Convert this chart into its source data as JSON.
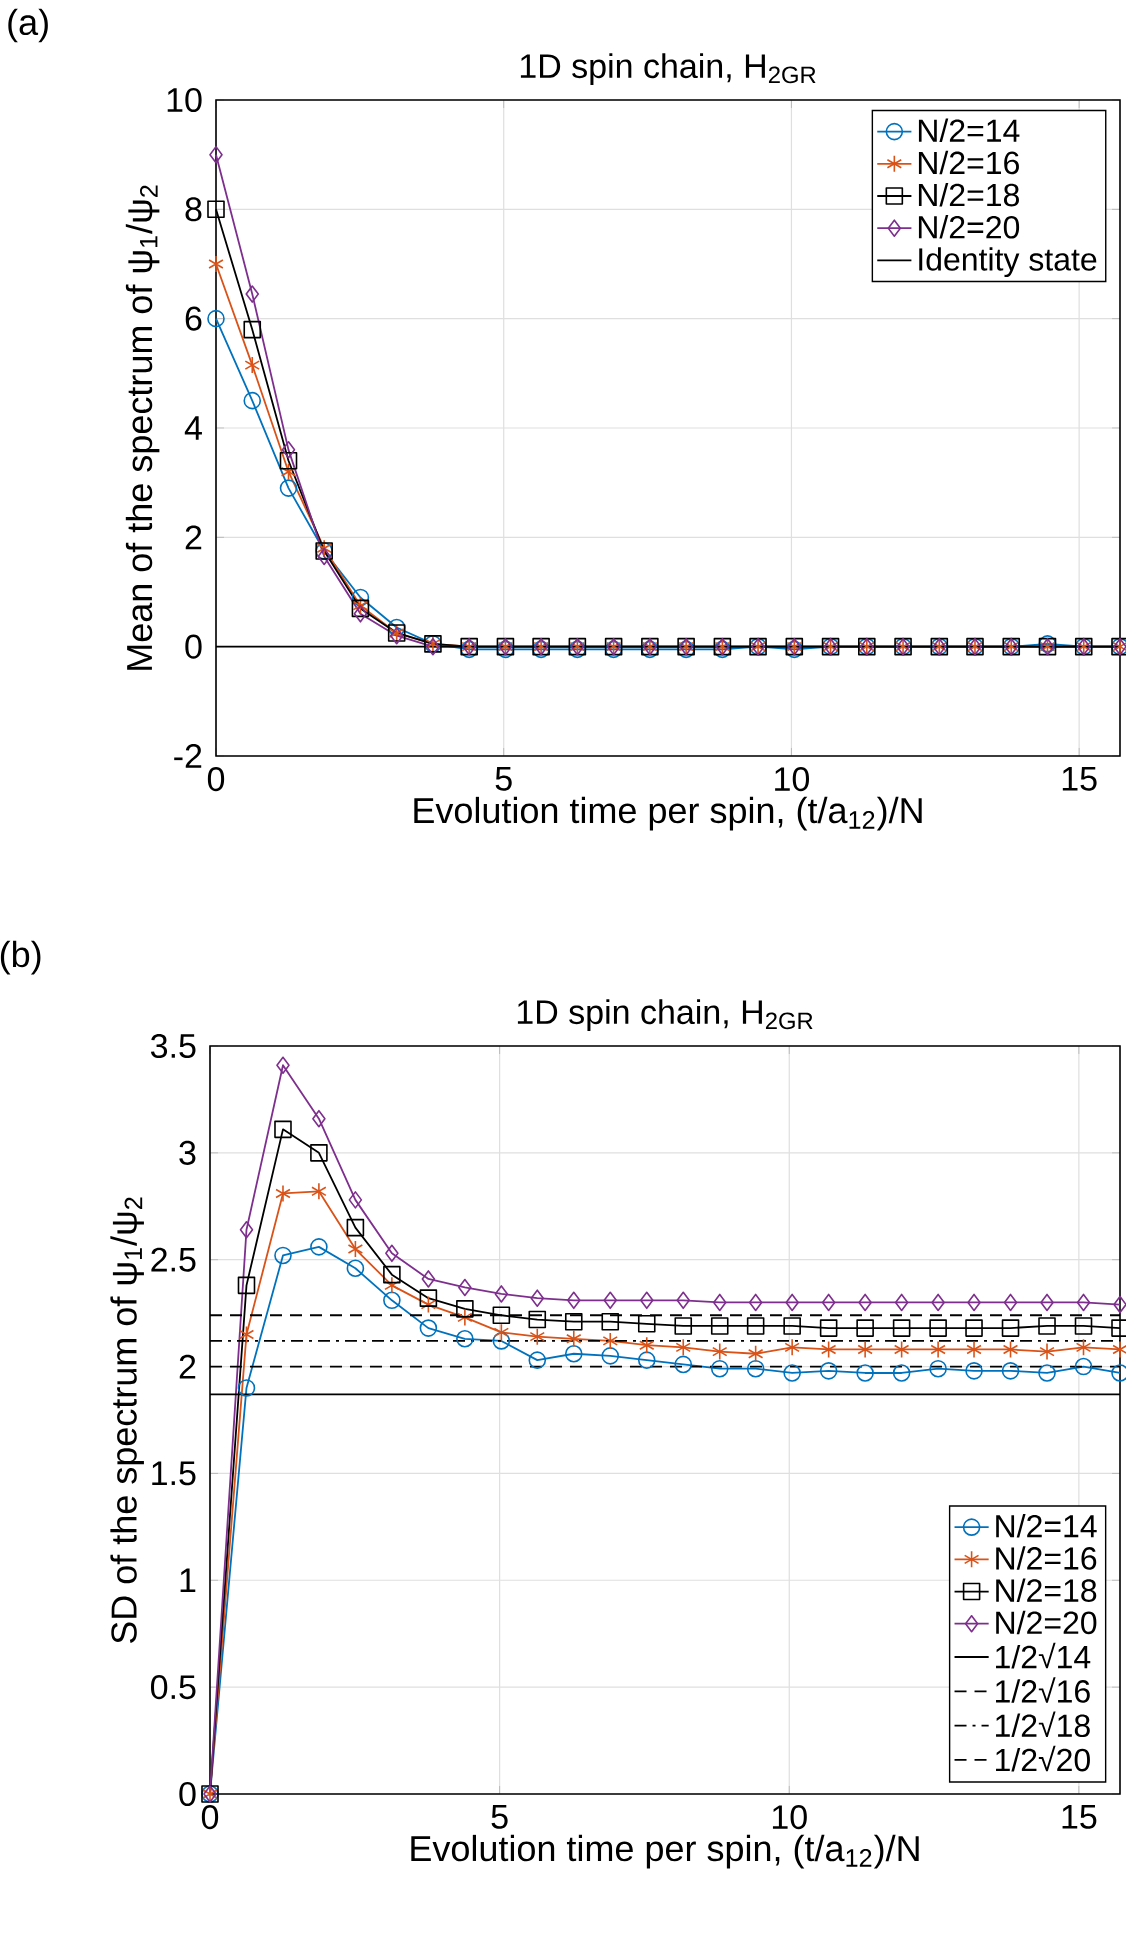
{
  "chart_data": [
    {
      "type": "line",
      "title": "1D spin chain, H$_{2GR}$",
      "xlabel": "Evolution time per spin, (t/a$_{12}$)/N",
      "ylabel": "Mean of the spectrum of ψ$_{1}$/ψ$_{2}$",
      "annotations": [
        "(a)"
      ],
      "x": [
        0,
        0.63,
        1.26,
        1.88,
        2.51,
        3.14,
        3.77,
        4.4,
        5.03,
        5.65,
        6.28,
        6.91,
        7.54,
        8.17,
        8.8,
        9.42,
        10.05,
        10.68,
        11.31,
        11.94,
        12.57,
        13.19,
        13.82,
        14.45,
        15.08,
        15.71
      ],
      "xlim": [
        0,
        15.71
      ],
      "xticks": [
        0,
        5,
        10,
        15
      ],
      "ylim": [
        -2,
        10
      ],
      "yticks": [
        -2,
        0,
        2,
        4,
        6,
        8,
        10
      ],
      "grid": true,
      "legend": "top right",
      "series": [
        {
          "name": "N/2=14",
          "color": "#0072bd",
          "marker": "circle",
          "values": [
            6,
            4.5,
            2.9,
            1.75,
            0.9,
            0.35,
            0.05,
            -0.05,
            -0.05,
            -0.05,
            -0.05,
            -0.05,
            -0.05,
            -0.05,
            -0.05,
            0,
            -0.05,
            0,
            0,
            0,
            0,
            0,
            0,
            0.05,
            0,
            0
          ]
        },
        {
          "name": "N/2=16",
          "color": "#d95319",
          "marker": "cross",
          "values": [
            7,
            5.15,
            3.2,
            1.8,
            0.75,
            0.25,
            0.05,
            0,
            0,
            0,
            0,
            0,
            0,
            0,
            0,
            0,
            0,
            0,
            0,
            0,
            0,
            0,
            0,
            0,
            0,
            0
          ]
        },
        {
          "name": "N/2=18",
          "color": "#000000",
          "marker": "square",
          "values": [
            8,
            5.8,
            3.4,
            1.75,
            0.7,
            0.25,
            0.05,
            0,
            0,
            0,
            0,
            0,
            0,
            0,
            0,
            0,
            0,
            0,
            0,
            0,
            0,
            0,
            0,
            0,
            0,
            0
          ]
        },
        {
          "name": "N/2=20",
          "color": "#7e2f8e",
          "marker": "diamond",
          "values": [
            9,
            6.45,
            3.6,
            1.65,
            0.6,
            0.2,
            0,
            0,
            0,
            0,
            0,
            0,
            0,
            0,
            0,
            0,
            0,
            0,
            0,
            0,
            0,
            0,
            0,
            0,
            0,
            0
          ]
        }
      ],
      "ref_lines": [
        {
          "axis": "y",
          "value": 0,
          "label": "Identity state",
          "color": "#000000",
          "line_style": "solid"
        }
      ]
    },
    {
      "type": "line",
      "title": "1D spin chain, H$_{2GR}$",
      "xlabel": "Evolution time per spin, (t/a$_{12}$)/N",
      "ylabel": "SD of the spectrum of ψ$_{1}$/ψ$_{2}$",
      "annotations": [
        "(b)"
      ],
      "x": [
        0,
        0.63,
        1.26,
        1.88,
        2.51,
        3.14,
        3.77,
        4.4,
        5.03,
        5.65,
        6.28,
        6.91,
        7.54,
        8.17,
        8.8,
        9.42,
        10.05,
        10.68,
        11.31,
        11.94,
        12.57,
        13.19,
        13.82,
        14.45,
        15.08,
        15.71
      ],
      "xlim": [
        0,
        15.71
      ],
      "xticks": [
        0,
        5,
        10,
        15
      ],
      "ylim": [
        0,
        3.5
      ],
      "yticks": [
        0,
        0.5,
        1,
        1.5,
        2,
        2.5,
        3,
        3.5
      ],
      "grid": true,
      "legend": "bottom right",
      "series": [
        {
          "name": "N/2=14",
          "color": "#0072bd",
          "marker": "circle",
          "values": [
            0,
            1.9,
            2.52,
            2.56,
            2.46,
            2.31,
            2.18,
            2.13,
            2.12,
            2.03,
            2.06,
            2.05,
            2.03,
            2.01,
            1.99,
            1.99,
            1.97,
            1.98,
            1.97,
            1.97,
            1.99,
            1.98,
            1.98,
            1.97,
            2.0,
            1.97
          ]
        },
        {
          "name": "N/2=16",
          "color": "#d95319",
          "marker": "cross",
          "values": [
            0,
            2.15,
            2.81,
            2.82,
            2.55,
            2.38,
            2.29,
            2.23,
            2.16,
            2.14,
            2.13,
            2.12,
            2.1,
            2.09,
            2.07,
            2.06,
            2.09,
            2.08,
            2.08,
            2.08,
            2.08,
            2.08,
            2.08,
            2.07,
            2.09,
            2.08
          ]
        },
        {
          "name": "N/2=18",
          "color": "#000000",
          "marker": "square",
          "values": [
            0,
            2.38,
            3.11,
            3.0,
            2.65,
            2.43,
            2.32,
            2.27,
            2.24,
            2.22,
            2.21,
            2.21,
            2.2,
            2.19,
            2.19,
            2.19,
            2.19,
            2.18,
            2.18,
            2.18,
            2.18,
            2.18,
            2.18,
            2.19,
            2.19,
            2.18
          ]
        },
        {
          "name": "N/2=20",
          "color": "#7e2f8e",
          "marker": "diamond",
          "values": [
            0,
            2.64,
            3.41,
            3.16,
            2.78,
            2.53,
            2.41,
            2.37,
            2.34,
            2.32,
            2.31,
            2.31,
            2.31,
            2.31,
            2.3,
            2.3,
            2.3,
            2.3,
            2.3,
            2.3,
            2.3,
            2.3,
            2.3,
            2.3,
            2.3,
            2.29
          ]
        }
      ],
      "ref_lines": [
        {
          "axis": "y",
          "value": 1.87,
          "label": "1/2√14",
          "color": "#000000",
          "line_style": "solid"
        },
        {
          "axis": "y",
          "value": 2.0,
          "label": "1/2√16",
          "color": "#000000",
          "line_style": "dashed"
        },
        {
          "axis": "y",
          "value": 2.12,
          "label": "1/2√18",
          "color": "#000000",
          "line_style": "dashdot"
        },
        {
          "axis": "y",
          "value": 2.24,
          "label": "1/2√20",
          "color": "#000000",
          "line_style": "dashed"
        }
      ]
    }
  ]
}
